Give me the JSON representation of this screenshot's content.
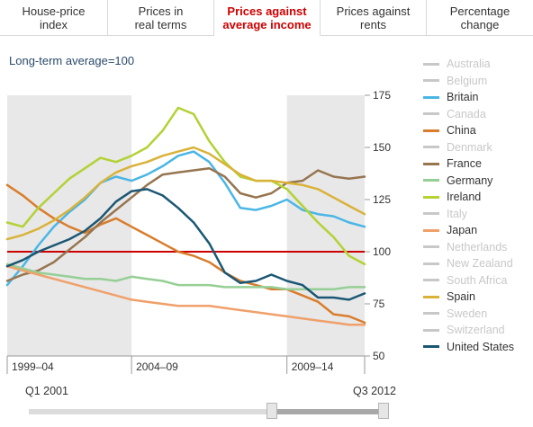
{
  "tabs": [
    {
      "label": "House-price\nindex",
      "active": false
    },
    {
      "label": "Prices in\nreal terms",
      "active": false
    },
    {
      "label": "Prices against\naverage income",
      "active": true
    },
    {
      "label": "Prices against\nrents",
      "active": false
    },
    {
      "label": "Percentage\nchange",
      "active": false
    }
  ],
  "subtitle": "Long-term average=100",
  "legend": [
    {
      "name": "Australia",
      "color": "#c8c8c8",
      "active": false
    },
    {
      "name": "Belgium",
      "color": "#c8c8c8",
      "active": false
    },
    {
      "name": "Britain",
      "color": "#4ab6e6",
      "active": true
    },
    {
      "name": "Canada",
      "color": "#c8c8c8",
      "active": false
    },
    {
      "name": "China",
      "color": "#d97d2c",
      "active": true
    },
    {
      "name": "Denmark",
      "color": "#c8c8c8",
      "active": false
    },
    {
      "name": "France",
      "color": "#96754f",
      "active": true
    },
    {
      "name": "Germany",
      "color": "#96cf96",
      "active": true
    },
    {
      "name": "Ireland",
      "color": "#b2d235",
      "active": true
    },
    {
      "name": "Italy",
      "color": "#c8c8c8",
      "active": false
    },
    {
      "name": "Japan",
      "color": "#f0a06a",
      "active": true
    },
    {
      "name": "Netherlands",
      "color": "#c8c8c8",
      "active": false
    },
    {
      "name": "New Zealand",
      "color": "#c8c8c8",
      "active": false
    },
    {
      "name": "South Africa",
      "color": "#c8c8c8",
      "active": false
    },
    {
      "name": "Spain",
      "color": "#dab238",
      "active": true
    },
    {
      "name": "Sweden",
      "color": "#c8c8c8",
      "active": false
    },
    {
      "name": "Switzerland",
      "color": "#c8c8c8",
      "active": false
    },
    {
      "name": "United States",
      "color": "#1b5774",
      "active": true
    }
  ],
  "slider": {
    "start_label": "Q1 2001",
    "end_label": "Q3 2012",
    "range_start_fraction": 0.675,
    "range_end_fraction": 1.0
  },
  "chart_data": {
    "type": "line",
    "title": "",
    "xlabel": "",
    "ylabel": "",
    "ylim": [
      50,
      175
    ],
    "yticks": [
      50,
      75,
      100,
      125,
      150,
      175
    ],
    "xlim": [
      2001.0,
      2012.5
    ],
    "x_periods": [
      {
        "label": "1999–04",
        "start": 2001.0,
        "end": 2005.0,
        "shaded": true
      },
      {
        "label": "2004–09",
        "start": 2005.0,
        "end": 2010.0,
        "shaded": false
      },
      {
        "label": "2009–14",
        "start": 2010.0,
        "end": 2012.5,
        "shaded": true
      }
    ],
    "reference_line": 100,
    "series": [
      {
        "name": "Britain",
        "color": "#4ab6e6",
        "x": [
          2001.0,
          2001.5,
          2002.0,
          2002.5,
          2003.0,
          2003.5,
          2004.0,
          2004.5,
          2005.0,
          2005.5,
          2006.0,
          2006.5,
          2007.0,
          2007.5,
          2008.0,
          2008.5,
          2009.0,
          2009.5,
          2010.0,
          2010.5,
          2011.0,
          2011.5,
          2012.0,
          2012.5
        ],
        "y": [
          84,
          93,
          103,
          112,
          119,
          125,
          133,
          136,
          134,
          137,
          141,
          146,
          148,
          143,
          133,
          121,
          120,
          122,
          125,
          120,
          118,
          117,
          114,
          112
        ]
      },
      {
        "name": "China",
        "color": "#d97d2c",
        "x": [
          2001.0,
          2001.5,
          2002.0,
          2002.5,
          2003.0,
          2003.5,
          2004.0,
          2004.5,
          2005.0,
          2005.5,
          2006.0,
          2006.5,
          2007.0,
          2007.5,
          2008.0,
          2008.5,
          2009.0,
          2009.5,
          2010.0,
          2010.5,
          2011.0,
          2011.5,
          2012.0,
          2012.5
        ],
        "y": [
          132,
          127,
          121,
          116,
          112,
          109,
          113,
          116,
          112,
          108,
          104,
          100,
          98,
          95,
          90,
          86,
          84,
          82,
          82,
          79,
          76,
          70,
          69,
          66
        ]
      },
      {
        "name": "France",
        "color": "#96754f",
        "x": [
          2001.0,
          2001.5,
          2002.0,
          2002.5,
          2003.0,
          2003.5,
          2004.0,
          2004.5,
          2005.0,
          2005.5,
          2006.0,
          2006.5,
          2007.0,
          2007.5,
          2008.0,
          2008.5,
          2009.0,
          2009.5,
          2010.0,
          2010.5,
          2011.0,
          2011.5,
          2012.0,
          2012.5
        ],
        "y": [
          86,
          89,
          91,
          95,
          101,
          107,
          114,
          120,
          126,
          132,
          137,
          138,
          139,
          140,
          136,
          128,
          126,
          128,
          133,
          134,
          139,
          136,
          135,
          136
        ]
      },
      {
        "name": "Germany",
        "color": "#96cf96",
        "x": [
          2001.0,
          2001.5,
          2002.0,
          2002.5,
          2003.0,
          2003.5,
          2004.0,
          2004.5,
          2005.0,
          2005.5,
          2006.0,
          2006.5,
          2007.0,
          2007.5,
          2008.0,
          2008.5,
          2009.0,
          2009.5,
          2010.0,
          2010.5,
          2011.0,
          2011.5,
          2012.0,
          2012.5
        ],
        "y": [
          94,
          92,
          90,
          89,
          88,
          87,
          87,
          86,
          88,
          87,
          86,
          84,
          84,
          84,
          83,
          83,
          83,
          83,
          82,
          82,
          82,
          82,
          83,
          83
        ]
      },
      {
        "name": "Ireland",
        "color": "#b2d235",
        "x": [
          2001.0,
          2001.5,
          2002.0,
          2002.5,
          2003.0,
          2003.5,
          2004.0,
          2004.5,
          2005.0,
          2005.5,
          2006.0,
          2006.5,
          2007.0,
          2007.5,
          2008.0,
          2008.5,
          2009.0,
          2009.5,
          2010.0,
          2010.5,
          2011.0,
          2011.5,
          2012.0,
          2012.5
        ],
        "y": [
          114,
          112,
          121,
          128,
          135,
          140,
          145,
          143,
          146,
          150,
          158,
          169,
          166,
          153,
          143,
          136,
          134,
          134,
          130,
          122,
          114,
          107,
          98,
          94
        ]
      },
      {
        "name": "Japan",
        "color": "#f0a06a",
        "x": [
          2001.0,
          2001.5,
          2002.0,
          2002.5,
          2003.0,
          2003.5,
          2004.0,
          2004.5,
          2005.0,
          2005.5,
          2006.0,
          2006.5,
          2007.0,
          2007.5,
          2008.0,
          2008.5,
          2009.0,
          2009.5,
          2010.0,
          2010.5,
          2011.0,
          2011.5,
          2012.0,
          2012.5
        ],
        "y": [
          93,
          91,
          89,
          87,
          85,
          83,
          81,
          79,
          77,
          76,
          75,
          74,
          74,
          74,
          73,
          72,
          71,
          70,
          69,
          68,
          67,
          66,
          65,
          65
        ]
      },
      {
        "name": "Spain",
        "color": "#dab238",
        "x": [
          2001.0,
          2001.5,
          2002.0,
          2002.5,
          2003.0,
          2003.5,
          2004.0,
          2004.5,
          2005.0,
          2005.5,
          2006.0,
          2006.5,
          2007.0,
          2007.5,
          2008.0,
          2008.5,
          2009.0,
          2009.5,
          2010.0,
          2010.5,
          2011.0,
          2011.5,
          2012.0,
          2012.5
        ],
        "y": [
          106,
          108,
          111,
          115,
          120,
          126,
          133,
          138,
          141,
          143,
          146,
          148,
          150,
          147,
          142,
          137,
          134,
          134,
          133,
          132,
          130,
          126,
          122,
          118
        ]
      },
      {
        "name": "United States",
        "color": "#1b5774",
        "x": [
          2001.0,
          2001.5,
          2002.0,
          2002.5,
          2003.0,
          2003.5,
          2004.0,
          2004.5,
          2005.0,
          2005.5,
          2006.0,
          2006.5,
          2007.0,
          2007.5,
          2008.0,
          2008.5,
          2009.0,
          2009.5,
          2010.0,
          2010.5,
          2011.0,
          2011.5,
          2012.0,
          2012.5
        ],
        "y": [
          93,
          96,
          100,
          103,
          106,
          110,
          116,
          124,
          129,
          130,
          127,
          121,
          114,
          104,
          90,
          85,
          86,
          89,
          86,
          84,
          78,
          78,
          77,
          80
        ]
      }
    ]
  }
}
